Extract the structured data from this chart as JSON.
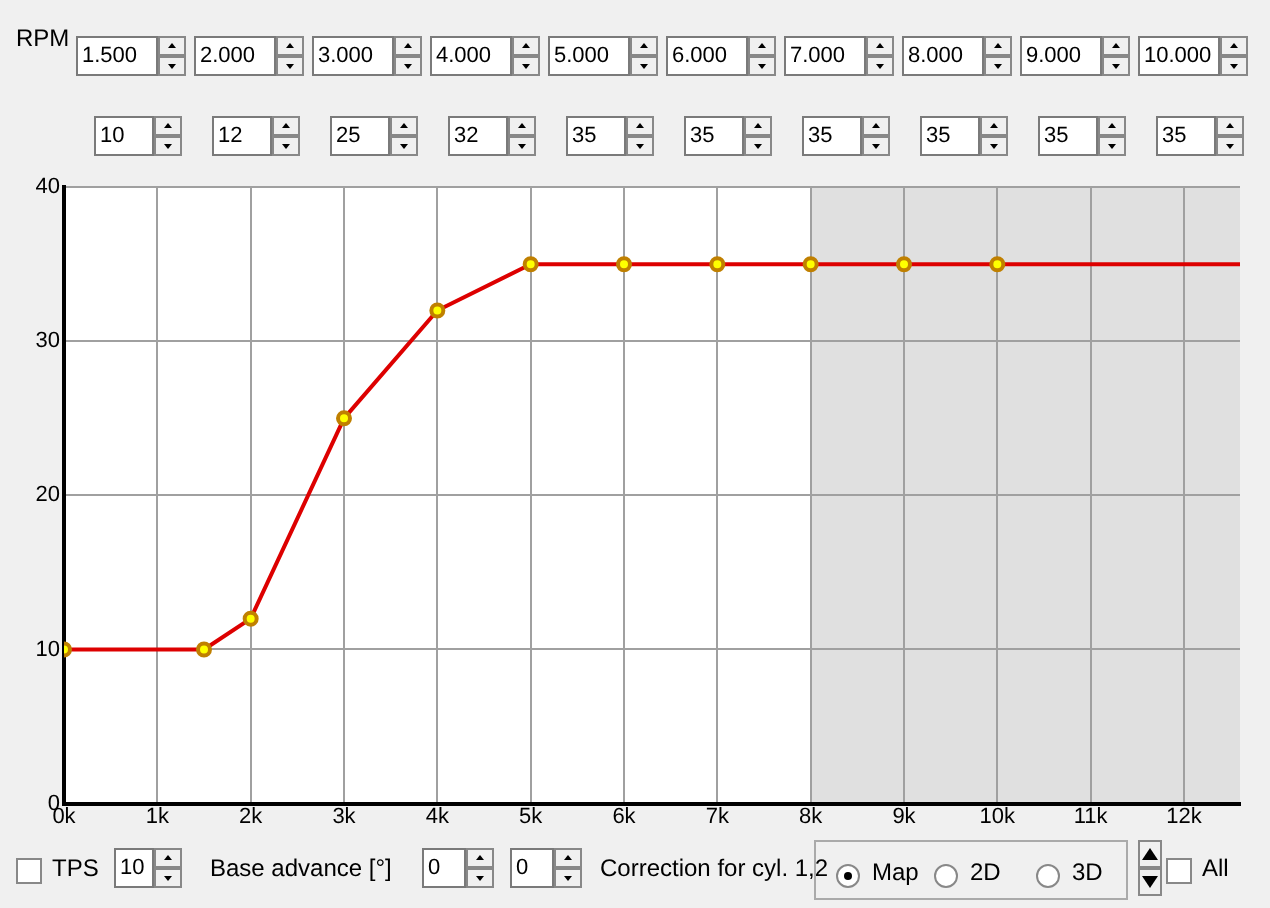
{
  "chart_data": {
    "type": "line",
    "x": [
      0,
      1500,
      2000,
      3000,
      4000,
      5000,
      6000,
      7000,
      8000,
      9000,
      10000
    ],
    "series": [
      {
        "color": "#dd0000",
        "values": [
          10,
          10,
          12,
          25,
          32,
          35,
          35,
          35,
          35,
          35,
          35
        ],
        "marker": "circle"
      },
      {
        "color": "#dd0000",
        "x": [
          10000,
          12600
        ],
        "values": [
          35,
          35
        ],
        "marker": "none"
      }
    ],
    "xlim": [
      0,
      12600
    ],
    "xticks": [
      {
        "value": 0,
        "label": "0k"
      },
      {
        "value": 1000,
        "label": "1k"
      },
      {
        "value": 2000,
        "label": "2k"
      },
      {
        "value": 3000,
        "label": "3k"
      },
      {
        "value": 4000,
        "label": "4k"
      },
      {
        "value": 5000,
        "label": "5k"
      },
      {
        "value": 6000,
        "label": "6k"
      },
      {
        "value": 7000,
        "label": "7k"
      },
      {
        "value": 8000,
        "label": "8k"
      },
      {
        "value": 9000,
        "label": "9k"
      },
      {
        "value": 10000,
        "label": "10k"
      },
      {
        "value": 11000,
        "label": "11k"
      },
      {
        "value": 12000,
        "label": "12k"
      }
    ],
    "ylim": [
      0,
      40
    ],
    "yticks": [
      0,
      10,
      20,
      30,
      40
    ],
    "grid": true,
    "legend": false,
    "line_style": "solid",
    "bands": [
      {
        "axis": "x",
        "from": 8000,
        "to": 12600,
        "color": "#e0e0e0"
      }
    ],
    "annotations": [
      "RPM",
      "1.500",
      "2.000",
      "3.000",
      "4.000",
      "5.000",
      "6.000",
      "7.000",
      "8.000",
      "9.000",
      "10.000",
      "10",
      "12",
      "25",
      "32",
      "35",
      "35",
      "35",
      "35",
      "35",
      "35",
      "TPS",
      "10",
      "Base advance [°]",
      "0",
      "0",
      "Correction for cyl. 1,2",
      "Map",
      "2D",
      "3D",
      "All"
    ]
  }
}
